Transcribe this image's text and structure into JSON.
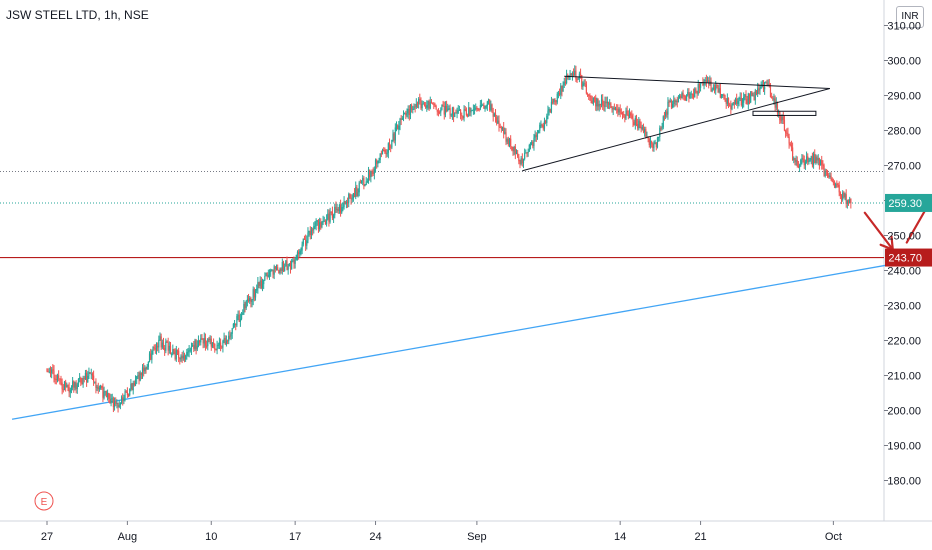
{
  "header": {
    "title": "JSW STEEL LTD, 1h, NSE",
    "currency": "INR"
  },
  "colors": {
    "up": "#26a69a",
    "down": "#ef5350",
    "last_price": "#26a69a",
    "support": "#b71c1c",
    "trendline": "#42a5f5",
    "pattern": "#131722",
    "arrow": "#c62828",
    "resistance_dots": "#787b86"
  },
  "earnings_marker": "E",
  "chart_data": {
    "type": "candlestick",
    "title": "JSW STEEL LTD, 1h, NSE",
    "ylim": [
      178,
      312
    ],
    "y_ticks": [
      "180.00",
      "190.00",
      "200.00",
      "210.00",
      "220.00",
      "230.00",
      "240.00",
      "250.00",
      "260.00",
      "270.00",
      "280.00",
      "290.00",
      "300.00",
      "310.00"
    ],
    "x_tick_labels": [
      "27",
      "Aug",
      "10",
      "17",
      "24",
      "Sep",
      "14",
      "21",
      "Oct"
    ],
    "last_price": "259.30",
    "support_level": "243.70",
    "resistance_dotted": 268.3,
    "price_path": [
      [
        0,
        212
      ],
      [
        3,
        206
      ],
      [
        6,
        210
      ],
      [
        8,
        205
      ],
      [
        10,
        201
      ],
      [
        13,
        209
      ],
      [
        16,
        220
      ],
      [
        19,
        215
      ],
      [
        22,
        220
      ],
      [
        25,
        218
      ],
      [
        29,
        232
      ],
      [
        32,
        240
      ],
      [
        35,
        242
      ],
      [
        38,
        252
      ],
      [
        42,
        258
      ],
      [
        44,
        262
      ],
      [
        47,
        270
      ],
      [
        49,
        276
      ],
      [
        51,
        284
      ],
      [
        53,
        288
      ],
      [
        56,
        286
      ],
      [
        60,
        285
      ],
      [
        63,
        288
      ],
      [
        65,
        280
      ],
      [
        68,
        271
      ],
      [
        71,
        282
      ],
      [
        74,
        294
      ],
      [
        76,
        296
      ],
      [
        78,
        288
      ],
      [
        81,
        287
      ],
      [
        84,
        283
      ],
      [
        87,
        275
      ],
      [
        89,
        288
      ],
      [
        92,
        290
      ],
      [
        94,
        294
      ],
      [
        96,
        291
      ],
      [
        98,
        287
      ],
      [
        101,
        290
      ],
      [
        103,
        293
      ],
      [
        104,
        289
      ],
      [
        106,
        278
      ],
      [
        107,
        270
      ],
      [
        110,
        272
      ],
      [
        112,
        266
      ],
      [
        114,
        261
      ],
      [
        115,
        259.3
      ]
    ],
    "annotations": {
      "triangle": {
        "upper": [
          [
            74,
            295.5
          ],
          [
            112,
            292
          ]
        ],
        "lower": [
          [
            68,
            268.5
          ],
          [
            112,
            292
          ]
        ]
      },
      "box": {
        "x": [
          101,
          110
        ],
        "y": [
          284.3,
          285.5
        ]
      },
      "support_trendline": [
        [
          -5,
          197.5
        ],
        [
          130,
          245
        ]
      ],
      "arrow_down": [
        [
          117,
          256.5
        ],
        [
          121,
          246
        ]
      ],
      "arrow_up": [
        [
          123,
          248
        ],
        [
          129,
          269
        ]
      ]
    }
  }
}
